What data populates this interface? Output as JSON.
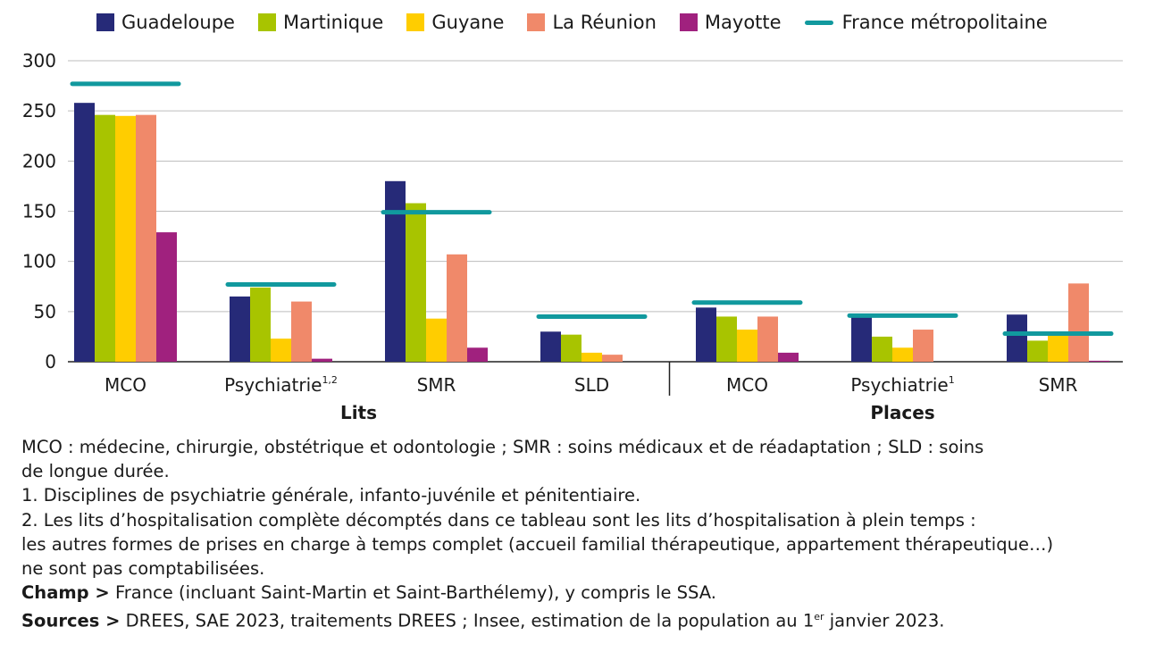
{
  "chart_data": {
    "type": "bar",
    "legend": [
      {
        "name": "Guadeloupe",
        "color": "#262a78",
        "kind": "bar"
      },
      {
        "name": "Martinique",
        "color": "#a8c400",
        "kind": "bar"
      },
      {
        "name": "Guyane",
        "color": "#ffcd00",
        "kind": "bar"
      },
      {
        "name": "La Réunion",
        "color": "#f0896a",
        "kind": "bar"
      },
      {
        "name": "Mayotte",
        "color": "#a0217e",
        "kind": "bar"
      },
      {
        "name": "France métropolitaine",
        "color": "#11999e",
        "kind": "line"
      }
    ],
    "legend_placement": "top",
    "yticks": [
      "300",
      "250",
      "200",
      "150",
      "100",
      "50",
      "0"
    ],
    "ylim": [
      0,
      300
    ],
    "grid": true,
    "groups": [
      {
        "name": "Lits",
        "categories": [
          {
            "label": "MCO",
            "sup": "",
            "values": [
              258,
              246,
              245,
              246,
              129
            ],
            "reference": 277
          },
          {
            "label": "Psychiatrie",
            "sup": "1,2",
            "values": [
              65,
              74,
              23,
              60,
              3
            ],
            "reference": 77
          },
          {
            "label": "SMR",
            "sup": "",
            "values": [
              180,
              158,
              43,
              107,
              14
            ],
            "reference": 149
          },
          {
            "label": "SLD",
            "sup": "",
            "values": [
              30,
              27,
              9,
              7,
              0
            ],
            "reference": 45
          }
        ]
      },
      {
        "name": "Places",
        "categories": [
          {
            "label": "MCO",
            "sup": "",
            "values": [
              54,
              45,
              32,
              45,
              9
            ],
            "reference": 59
          },
          {
            "label": "Psychiatrie",
            "sup": "1",
            "values": [
              48,
              25,
              14,
              32,
              0
            ],
            "reference": 46
          },
          {
            "label": "SMR",
            "sup": "",
            "values": [
              47,
              21,
              26,
              78,
              1
            ],
            "reference": 28
          }
        ]
      }
    ]
  },
  "notes": {
    "line1": "MCO : médecine, chirurgie, obstétrique et odontologie ; SMR : soins médicaux et de réadaptation ; SLD : soins",
    "line2": "de longue durée.",
    "line3": "1. Disciplines de psychiatrie générale, infanto-juvénile et pénitentiaire.",
    "line4": "2. Les lits d’hospitalisation complète décomptés dans ce tableau sont les lits d’hospitalisation à plein temps :",
    "line5": "les autres formes de prises en charge à temps complet (accueil familial thérapeutique, appartement thérapeutique…)",
    "line6": "ne sont pas comptabilisées.",
    "champ_label": "Champ >",
    "champ_text": " France (incluant Saint-Martin et Saint-Barthélemy), y compris le SSA.",
    "sources_label": "Sources >",
    "sources_text_a": " DREES, SAE 2023, traitements DREES ; Insee, estimation de la population au 1",
    "sources_sup": "er",
    "sources_text_b": " janvier 2023."
  }
}
